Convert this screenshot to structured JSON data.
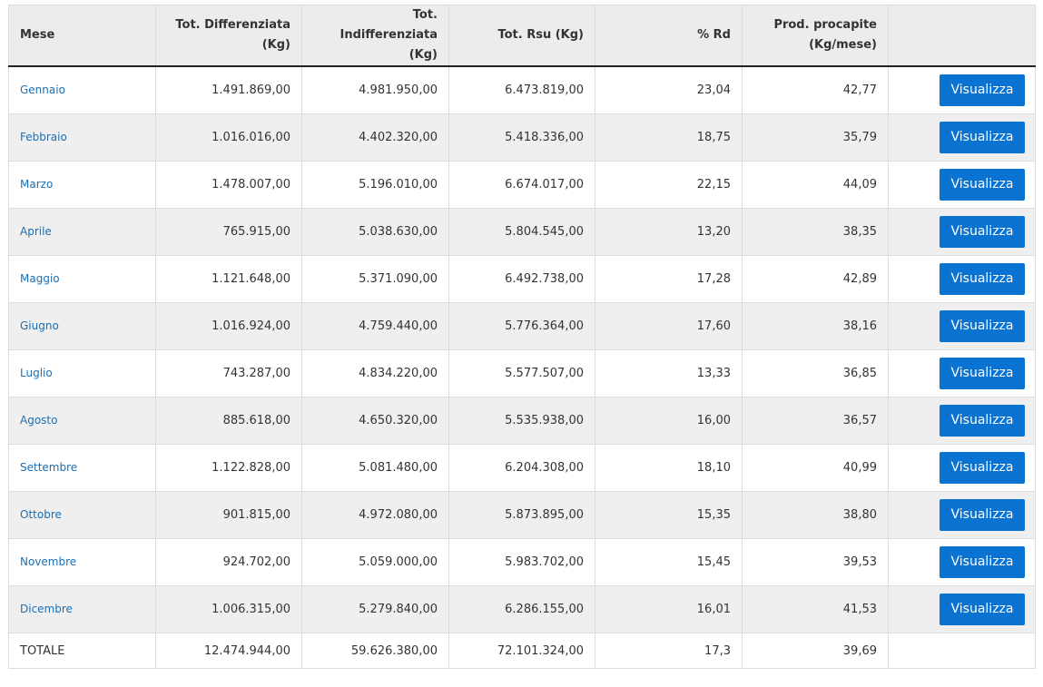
{
  "headers": [
    "Mese",
    "Tot. Differenziata (Kg)",
    "Tot. Indifferenziata (Kg)",
    "Tot. Rsu (Kg)",
    "% Rd",
    "Prod. procapite (Kg/mese)",
    ""
  ],
  "button_label": "Visualizza",
  "colors": {
    "button": "#0a73d1",
    "link": "#1a6fb5",
    "header_bg": "#ececec",
    "stripe": "#efefef"
  },
  "rows": [
    {
      "month": "Gennaio",
      "diff": "1.491.869,00",
      "indiff": "4.981.950,00",
      "rsu": "6.473.819,00",
      "rd": "23,04",
      "procapite": "42,77"
    },
    {
      "month": "Febbraio",
      "diff": "1.016.016,00",
      "indiff": "4.402.320,00",
      "rsu": "5.418.336,00",
      "rd": "18,75",
      "procapite": "35,79"
    },
    {
      "month": "Marzo",
      "diff": "1.478.007,00",
      "indiff": "5.196.010,00",
      "rsu": "6.674.017,00",
      "rd": "22,15",
      "procapite": "44,09"
    },
    {
      "month": "Aprile",
      "diff": "765.915,00",
      "indiff": "5.038.630,00",
      "rsu": "5.804.545,00",
      "rd": "13,20",
      "procapite": "38,35"
    },
    {
      "month": "Maggio",
      "diff": "1.121.648,00",
      "indiff": "5.371.090,00",
      "rsu": "6.492.738,00",
      "rd": "17,28",
      "procapite": "42,89"
    },
    {
      "month": "Giugno",
      "diff": "1.016.924,00",
      "indiff": "4.759.440,00",
      "rsu": "5.776.364,00",
      "rd": "17,60",
      "procapite": "38,16"
    },
    {
      "month": "Luglio",
      "diff": "743.287,00",
      "indiff": "4.834.220,00",
      "rsu": "5.577.507,00",
      "rd": "13,33",
      "procapite": "36,85"
    },
    {
      "month": "Agosto",
      "diff": "885.618,00",
      "indiff": "4.650.320,00",
      "rsu": "5.535.938,00",
      "rd": "16,00",
      "procapite": "36,57"
    },
    {
      "month": "Settembre",
      "diff": "1.122.828,00",
      "indiff": "5.081.480,00",
      "rsu": "6.204.308,00",
      "rd": "18,10",
      "procapite": "40,99"
    },
    {
      "month": "Ottobre",
      "diff": "901.815,00",
      "indiff": "4.972.080,00",
      "rsu": "5.873.895,00",
      "rd": "15,35",
      "procapite": "38,80"
    },
    {
      "month": "Novembre",
      "diff": "924.702,00",
      "indiff": "5.059.000,00",
      "rsu": "5.983.702,00",
      "rd": "15,45",
      "procapite": "39,53"
    },
    {
      "month": "Dicembre",
      "diff": "1.006.315,00",
      "indiff": "5.279.840,00",
      "rsu": "6.286.155,00",
      "rd": "16,01",
      "procapite": "41,53"
    }
  ],
  "total": {
    "label": "TOTALE",
    "diff": "12.474.944,00",
    "indiff": "59.626.380,00",
    "rsu": "72.101.324,00",
    "rd": "17,3",
    "procapite": "39,69"
  }
}
